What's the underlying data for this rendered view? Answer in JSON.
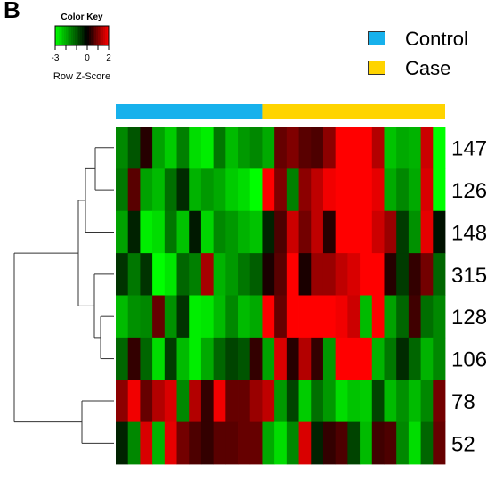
{
  "figure": {
    "panel_label": "B"
  },
  "colors": {
    "low": "#00ff00",
    "mid": "#000000",
    "high": "#ff0000",
    "control": "#17b1ec",
    "case": "#ffd400"
  },
  "chart_data": {
    "type": "heatmap",
    "color_key": {
      "title": "Color Key",
      "label": "Row Z-Score",
      "ticks": [
        "-3",
        "0",
        "2"
      ],
      "range": [
        -3,
        2
      ]
    },
    "legend": {
      "position": "top-right",
      "items": [
        {
          "name": "Control",
          "color": "#17b1ec"
        },
        {
          "name": "Case",
          "color": "#ffd400"
        }
      ]
    },
    "column_groups": {
      "control_count": 12,
      "case_count": 15
    },
    "rows": [
      "147",
      "126",
      "148",
      "315",
      "128",
      "106",
      "78",
      "52"
    ],
    "values": [
      [
        -1.6,
        -1.0,
        0.3,
        -1.9,
        -2.4,
        -1.5,
        -2.6,
        -2.8,
        -1.4,
        -2.2,
        -1.8,
        -1.6,
        -2.0,
        0.8,
        1.0,
        0.7,
        0.6,
        1.1,
        2.0,
        2.2,
        2.0,
        1.4,
        -2.3,
        -2.0,
        -2.1,
        1.6,
        -3.0
      ],
      [
        -1.4,
        0.7,
        -1.9,
        -2.2,
        -1.3,
        -0.5,
        -2.1,
        -1.8,
        -2.0,
        -2.4,
        -2.6,
        -3.0,
        2.0,
        1.0,
        -1.5,
        1.1,
        1.5,
        1.9,
        2.8,
        2.4,
        2.6,
        1.8,
        -2.0,
        -1.6,
        -2.0,
        1.7,
        -3.0
      ],
      [
        -1.9,
        -0.4,
        -2.8,
        -2.6,
        -1.4,
        -2.3,
        -0.3,
        -2.5,
        -1.6,
        -1.8,
        -2.1,
        -2.3,
        -0.4,
        0.6,
        1.6,
        0.9,
        1.5,
        0.3,
        2.8,
        2.6,
        2.2,
        1.6,
        1.2,
        -0.7,
        -1.7,
        1.8,
        -0.2
      ],
      [
        -0.6,
        -1.4,
        -0.6,
        -3.0,
        -2.7,
        -1.2,
        -1.5,
        1.3,
        -2.1,
        -1.8,
        -1.4,
        -1.1,
        0.2,
        0.7,
        2.0,
        0.2,
        1.2,
        1.2,
        1.5,
        1.7,
        2.0,
        2.4,
        0.3,
        -0.7,
        0.4,
        0.9,
        -1.2
      ],
      [
        -2.2,
        -1.7,
        -1.6,
        0.8,
        -1.7,
        -0.6,
        -2.8,
        -2.7,
        -2.2,
        -1.6,
        -2.2,
        -2.0,
        2.5,
        0.8,
        2.5,
        2.0,
        2.0,
        2.2,
        1.9,
        1.6,
        -2.2,
        2.0,
        -1.9,
        -1.2,
        0.5,
        -1.3,
        -1.6
      ],
      [
        -1.2,
        0.4,
        -1.2,
        -2.6,
        -0.7,
        -2.2,
        -2.8,
        -2.0,
        -1.2,
        -0.8,
        -1.0,
        0.4,
        -1.9,
        1.7,
        0.3,
        1.4,
        0.4,
        -1.8,
        2.2,
        2.4,
        2.1,
        -2.1,
        -1.4,
        -0.5,
        -1.2,
        -2.1,
        -1.6
      ],
      [
        1.1,
        1.9,
        0.8,
        1.4,
        1.7,
        -1.6,
        1.4,
        0.4,
        1.9,
        0.8,
        0.8,
        1.2,
        1.5,
        -1.8,
        -0.8,
        -2.4,
        -1.3,
        -1.8,
        -2.6,
        -2.3,
        -2.4,
        -0.8,
        -2.2,
        -1.7,
        -2.2,
        -1.6,
        0.9
      ],
      [
        -0.4,
        -1.6,
        1.7,
        -2.1,
        1.8,
        0.9,
        0.6,
        0.4,
        0.7,
        0.7,
        0.8,
        0.8,
        -2.0,
        -2.6,
        -1.6,
        1.7,
        -0.4,
        0.4,
        0.6,
        -0.8,
        -2.2,
        0.5,
        0.6,
        -1.6,
        -2.6,
        -1.2,
        0.8
      ]
    ],
    "dendrogram_order": [
      "147",
      "126",
      "148",
      "315",
      "128",
      "106",
      "78",
      "52"
    ]
  }
}
